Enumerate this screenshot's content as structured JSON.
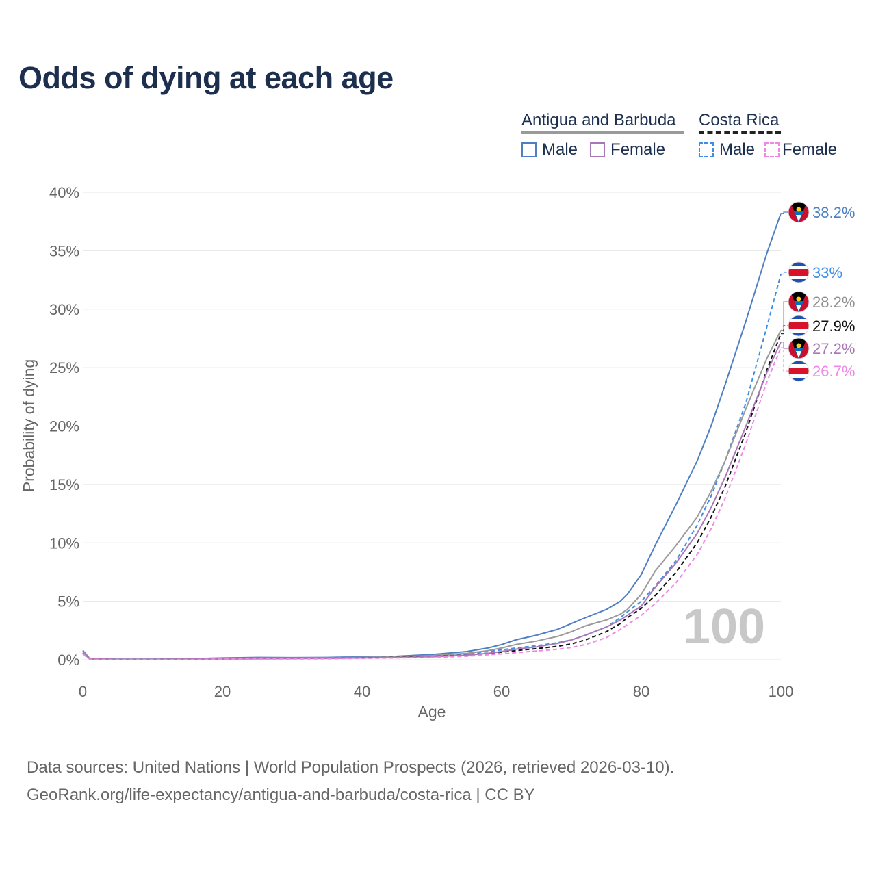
{
  "title": "Odds of dying at each age",
  "legend": {
    "country_a": "Antigua and Barbuda",
    "country_b": "Costa Rica",
    "male": "Male",
    "female": "Female"
  },
  "colors": {
    "a_male": "#4f7fc3",
    "a_female": "#a877b6",
    "b_male": "#3e8ee6",
    "b_female": "#f086e6",
    "both_a": "#9a9a9a",
    "both_b": "#111111"
  },
  "footer": {
    "line1": "Data sources: United Nations | World Population Prospects (2026, retrieved 2026-03-10).",
    "line2": "GeoRank.org/life-expectancy/antigua-and-barbuda/costa-rica | CC BY"
  },
  "chart_data": {
    "type": "line",
    "xlabel": "Age",
    "ylabel": "Probability of dying",
    "xlim": [
      0,
      100
    ],
    "ylim": [
      0,
      40
    ],
    "x_ticks": [
      "0",
      "20",
      "40",
      "60",
      "80",
      "100"
    ],
    "y_ticks": [
      "0%",
      "5%",
      "10%",
      "15%",
      "20%",
      "25%",
      "30%",
      "35%",
      "40%"
    ],
    "watermark": "100",
    "x": [
      0,
      1,
      5,
      10,
      15,
      20,
      25,
      30,
      35,
      40,
      45,
      50,
      55,
      58,
      60,
      62,
      65,
      68,
      70,
      72,
      75,
      77,
      78,
      80,
      82,
      85,
      88,
      90,
      92,
      95,
      98,
      100
    ],
    "series": [
      {
        "name": "Antigua and Barbuda Male",
        "country": "Antigua and Barbuda",
        "sex": "Male",
        "dash": false,
        "color": "#4f7fc3",
        "end_label": "38.2%",
        "flag": "antigua",
        "values": [
          0.8,
          0.1,
          0.05,
          0.05,
          0.08,
          0.15,
          0.2,
          0.18,
          0.2,
          0.25,
          0.3,
          0.45,
          0.7,
          1.0,
          1.3,
          1.7,
          2.1,
          2.6,
          3.1,
          3.6,
          4.3,
          5.0,
          5.6,
          7.3,
          9.8,
          13.3,
          17.0,
          20.0,
          23.5,
          29.0,
          34.8,
          38.2
        ]
      },
      {
        "name": "Costa Rica Male",
        "country": "Costa Rica",
        "sex": "Male",
        "dash": true,
        "color": "#3e8ee6",
        "end_label": "33%",
        "flag": "costarica",
        "values": [
          0.6,
          0.05,
          0.03,
          0.03,
          0.05,
          0.1,
          0.13,
          0.14,
          0.16,
          0.2,
          0.25,
          0.35,
          0.5,
          0.7,
          0.85,
          1.0,
          1.2,
          1.45,
          1.7,
          2.1,
          2.8,
          3.6,
          4.1,
          5.0,
          6.3,
          8.5,
          11.5,
          14.0,
          17.0,
          22.0,
          28.5,
          33.0
        ]
      },
      {
        "name": "Antigua and Barbuda (both sexes)",
        "country": "Antigua and Barbuda",
        "sex": "Both",
        "dash": false,
        "color": "#9a9a9a",
        "end_label": "28.2%",
        "flag": "antigua",
        "values": [
          0.7,
          0.08,
          0.04,
          0.04,
          0.06,
          0.1,
          0.14,
          0.14,
          0.16,
          0.2,
          0.24,
          0.35,
          0.55,
          0.78,
          1.0,
          1.3,
          1.6,
          2.0,
          2.4,
          2.9,
          3.4,
          3.9,
          4.3,
          5.6,
          7.6,
          9.8,
          12.2,
          14.4,
          17.0,
          21.5,
          25.8,
          28.2
        ]
      },
      {
        "name": "Costa Rica (both sexes)",
        "country": "Costa Rica",
        "sex": "Both",
        "dash": true,
        "color": "#111111",
        "end_label": "27.9%",
        "flag": "costarica",
        "values": [
          0.55,
          0.05,
          0.03,
          0.03,
          0.04,
          0.08,
          0.1,
          0.1,
          0.12,
          0.16,
          0.2,
          0.28,
          0.4,
          0.55,
          0.65,
          0.78,
          0.95,
          1.15,
          1.35,
          1.7,
          2.4,
          3.1,
          3.6,
          4.4,
          5.5,
          7.5,
          10.0,
          12.2,
          14.8,
          19.5,
          24.8,
          27.9
        ]
      },
      {
        "name": "Antigua and Barbuda Female",
        "country": "Antigua and Barbuda",
        "sex": "Female",
        "dash": false,
        "color": "#a877b6",
        "end_label": "27.2%",
        "flag": "antigua",
        "values": [
          0.6,
          0.06,
          0.03,
          0.03,
          0.04,
          0.06,
          0.09,
          0.1,
          0.12,
          0.15,
          0.18,
          0.25,
          0.4,
          0.55,
          0.7,
          0.9,
          1.1,
          1.4,
          1.7,
          2.1,
          2.8,
          3.4,
          3.8,
          4.6,
          6.2,
          8.3,
          10.8,
          13.0,
          15.6,
          20.0,
          24.6,
          27.2
        ]
      },
      {
        "name": "Costa Rica Female",
        "country": "Costa Rica",
        "sex": "Female",
        "dash": true,
        "color": "#f086e6",
        "end_label": "26.7%",
        "flag": "costarica",
        "values": [
          0.5,
          0.04,
          0.02,
          0.02,
          0.03,
          0.05,
          0.06,
          0.07,
          0.09,
          0.12,
          0.15,
          0.2,
          0.3,
          0.42,
          0.5,
          0.6,
          0.75,
          0.9,
          1.05,
          1.3,
          1.9,
          2.6,
          3.0,
          3.8,
          4.8,
          6.6,
          9.0,
          11.2,
          13.8,
          18.5,
          23.8,
          26.7
        ]
      }
    ]
  }
}
